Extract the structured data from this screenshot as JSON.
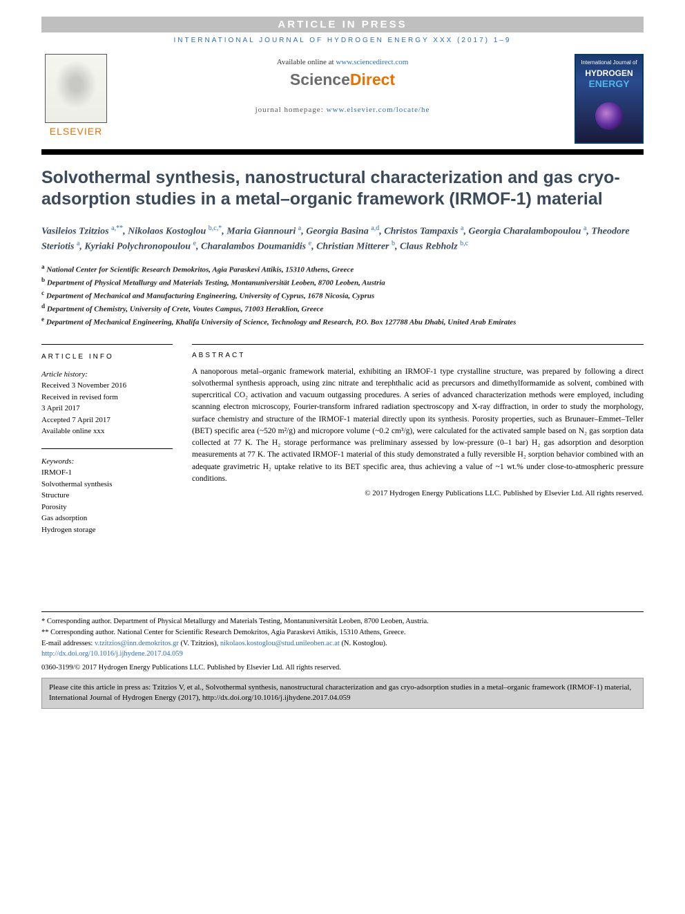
{
  "banner": {
    "text": "ARTICLE IN PRESS"
  },
  "citation_header": "INTERNATIONAL JOURNAL OF HYDROGEN ENERGY XXX (2017) 1–9",
  "header": {
    "elsevier_label": "ELSEVIER",
    "available_prefix": "Available online at ",
    "available_link": "www.sciencedirect.com",
    "sd_sci": "Science",
    "sd_dir": "Direct",
    "homepage_prefix": "journal homepage: ",
    "homepage_link": "www.elsevier.com/locate/he",
    "cover_top": "International Journal of",
    "cover_h": "HYDROGEN",
    "cover_e": "ENERGY"
  },
  "title": "Solvothermal synthesis, nanostructural characterization and gas cryo-adsorption studies in a metal–organic framework (IRMOF-1) material",
  "authors": [
    {
      "name": "Vasileios Tzitzios",
      "sup": "a,**"
    },
    {
      "name": "Nikolaos Kostoglou",
      "sup": "b,c,*"
    },
    {
      "name": "Maria Giannouri",
      "sup": "a"
    },
    {
      "name": "Georgia Basina",
      "sup": "a,d"
    },
    {
      "name": "Christos Tampaxis",
      "sup": "a"
    },
    {
      "name": "Georgia Charalambopoulou",
      "sup": "a"
    },
    {
      "name": "Theodore Steriotis",
      "sup": "a"
    },
    {
      "name": "Kyriaki Polychronopoulou",
      "sup": "e"
    },
    {
      "name": "Charalambos Doumanidis",
      "sup": "e"
    },
    {
      "name": "Christian Mitterer",
      "sup": "b"
    },
    {
      "name": "Claus Rebholz",
      "sup": "b,c"
    }
  ],
  "affiliations": [
    {
      "key": "a",
      "text": "National Center for Scientific Research Demokritos, Agia Paraskevi Attikis, 15310 Athens, Greece"
    },
    {
      "key": "b",
      "text": "Department of Physical Metallurgy and Materials Testing, Montanuniversität Leoben, 8700 Leoben, Austria"
    },
    {
      "key": "c",
      "text": "Department of Mechanical and Manufacturing Engineering, University of Cyprus, 1678 Nicosia, Cyprus"
    },
    {
      "key": "d",
      "text": "Department of Chemistry, University of Crete, Voutes Campus, 71003 Heraklion, Greece"
    },
    {
      "key": "e",
      "text": "Department of Mechanical Engineering, Khalifa University of Science, Technology and Research, P.O. Box 127788 Abu Dhabi, United Arab Emirates"
    }
  ],
  "article_info": {
    "heading": "ARTICLE INFO",
    "history_label": "Article history:",
    "lines": [
      "Received 3 November 2016",
      "Received in revised form",
      "3 April 2017",
      "Accepted 7 April 2017",
      "Available online xxx"
    ],
    "keywords_label": "Keywords:",
    "keywords": [
      "IRMOF-1",
      "Solvothermal synthesis",
      "Structure",
      "Porosity",
      "Gas adsorption",
      "Hydrogen storage"
    ]
  },
  "abstract": {
    "heading": "ABSTRACT",
    "text": "A nanoporous metal–organic framework material, exhibiting an IRMOF-1 type crystalline structure, was prepared by following a direct solvothermal synthesis approach, using zinc nitrate and terephthalic acid as precursors and dimethylformamide as solvent, combined with supercritical CO₂ activation and vacuum outgassing procedures. A series of advanced characterization methods were employed, including scanning electron microscopy, Fourier-transform infrared radiation spectroscopy and X-ray diffraction, in order to study the morphology, surface chemistry and structure of the IRMOF-1 material directly upon its synthesis. Porosity properties, such as Brunauer–Emmet–Teller (BET) specific area (~520 m²/g) and micropore volume (~0.2 cm³/g), were calculated for the activated sample based on N₂ gas sorption data collected at 77 K. The H₂ storage performance was preliminary assessed by low-pressure (0–1 bar) H₂ gas adsorption and desorption measurements at 77 K. The activated IRMOF-1 material of this study demonstrated a fully reversible H₂ sorption behavior combined with an adequate gravimetric H₂ uptake relative to its BET specific area, thus achieving a value of ~1 wt.% under close-to-atmospheric pressure conditions.",
    "copyright": "© 2017 Hydrogen Energy Publications LLC. Published by Elsevier Ltd. All rights reserved."
  },
  "footer": {
    "corr1": "* Corresponding author. Department of Physical Metallurgy and Materials Testing, Montanuniversität Leoben, 8700 Leoben, Austria.",
    "corr2": "** Corresponding author. National Center for Scientific Research Demokritos, Agia Paraskevi Attikis, 15310 Athens, Greece.",
    "email_label": "E-mail addresses: ",
    "email1": "v.tzitzios@inn.demokritos.gr",
    "email1_who": " (V. Tzitzios), ",
    "email2": "nikolaos.kostoglou@stud.unileoben.ac.at",
    "email2_who": " (N. Kostoglou).",
    "doi": "http://dx.doi.org/10.1016/j.ijhydene.2017.04.059",
    "issn": "0360-3199/© 2017 Hydrogen Energy Publications LLC. Published by Elsevier Ltd. All rights reserved."
  },
  "cite_box": "Please cite this article in press as: Tzitzios V, et al., Solvothermal synthesis, nanostructural characterization and gas cryo-adsorption studies in a metal–organic framework (IRMOF-1) material, International Journal of Hydrogen Energy (2017), http://dx.doi.org/10.1016/j.ijhydene.2017.04.059",
  "colors": {
    "banner_bg": "#bfbfbf",
    "link": "#2e6db4",
    "orange": "#e57200",
    "title": "#3a4a5a",
    "cite_bg": "#d0d0d0"
  }
}
